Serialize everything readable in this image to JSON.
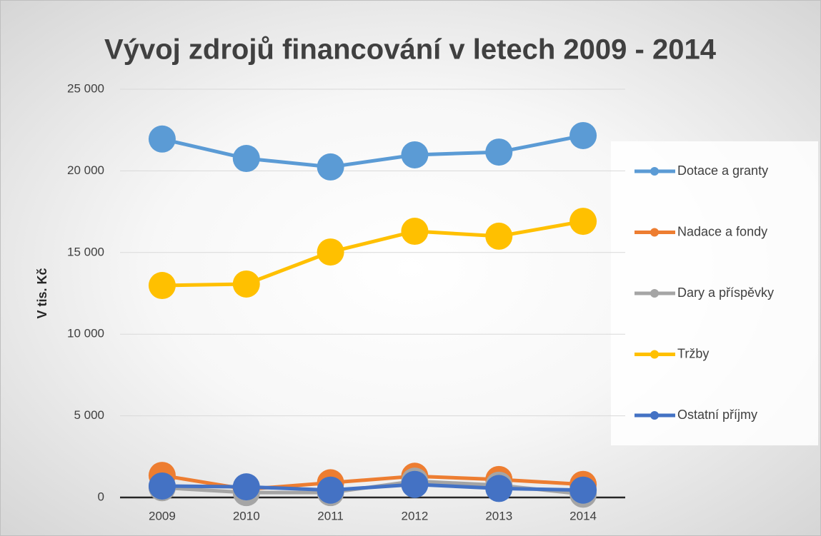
{
  "chart_data": {
    "type": "line",
    "title": "Vývoj zdrojů financování v letech 2009 - 2014",
    "ylabel": "V tis. Kč",
    "categories": [
      "2009",
      "2010",
      "2011",
      "2012",
      "2013",
      "2014"
    ],
    "series": [
      {
        "name": "Dotace a granty",
        "color": "#5b9bd5",
        "values": [
          21950,
          20760,
          20240,
          20980,
          21150,
          22160
        ]
      },
      {
        "name": "Nadace a fondy",
        "color": "#ed7d31",
        "values": [
          1350,
          500,
          900,
          1300,
          1100,
          800
        ]
      },
      {
        "name": "Dary a příspěvky",
        "color": "#a5a5a5",
        "values": [
          600,
          300,
          300,
          1000,
          750,
          200
        ]
      },
      {
        "name": "Tržby",
        "color": "#ffc000",
        "values": [
          12980,
          13070,
          15030,
          16300,
          16000,
          16910
        ]
      },
      {
        "name": "Ostatní příjmy",
        "color": "#4472c4",
        "values": [
          700,
          650,
          450,
          800,
          550,
          450
        ]
      }
    ],
    "ylim": [
      0,
      25000
    ],
    "yticks": [
      0,
      {
        "value": 5000,
        "label": "5 000"
      },
      {
        "value": 10000,
        "label": "10 000"
      },
      {
        "value": 15000,
        "label": "15 000"
      },
      {
        "value": 20000,
        "label": "20 000"
      },
      {
        "value": 25000,
        "label": "25 000"
      }
    ],
    "grid": true,
    "legend": "right"
  }
}
